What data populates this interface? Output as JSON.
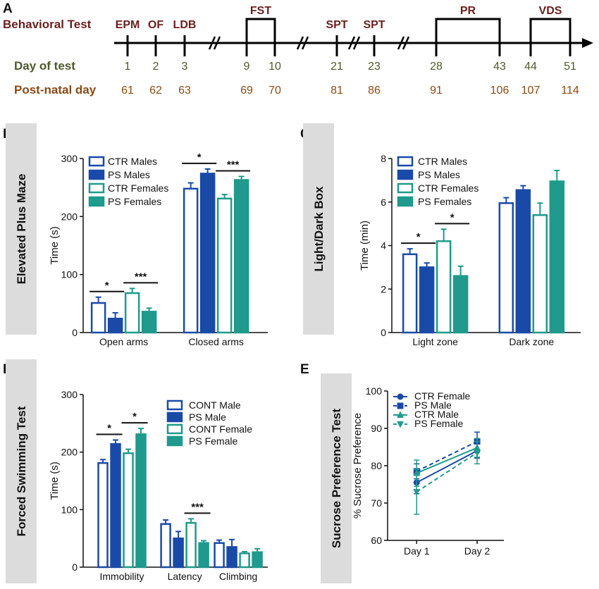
{
  "panels": {
    "a": "A",
    "b": "B",
    "c": "C",
    "d": "D",
    "e": "E"
  },
  "timeline": {
    "row_labels": {
      "behavioral": "Behavioral Test",
      "day": "Day of test",
      "pnd": "Post-natal day"
    },
    "days": [
      "1",
      "2",
      "3",
      "9",
      "10",
      "21",
      "23",
      "28",
      "43",
      "44",
      "51"
    ],
    "pnd": [
      "61",
      "62",
      "63",
      "69",
      "70",
      "81",
      "86",
      "91",
      "106",
      "107",
      "114"
    ],
    "tests": [
      "EPM",
      "OF",
      "LDB",
      "FST",
      "SPT",
      "SPT",
      "PR",
      "VDS"
    ],
    "colors": {
      "behavioral": "#6b1f1f",
      "day": "#4d5a2a",
      "pnd": "#8a4a14"
    }
  },
  "chart_data": [
    {
      "id": "B",
      "type": "bar",
      "side_label": "Elevated Plus Maze",
      "ylabel": "Time (s)",
      "ylim": [
        0,
        300
      ],
      "yticks": [
        0,
        100,
        200,
        300
      ],
      "categories": [
        "Open arms",
        "Closed arms"
      ],
      "series": [
        {
          "name": "CTR Males",
          "values": [
            51,
            248
          ],
          "errors": [
            10,
            10
          ],
          "fill": "#ffffff",
          "stroke": "#1a4aa8"
        },
        {
          "name": "PS Males",
          "values": [
            24,
            274
          ],
          "errors": [
            10,
            8
          ],
          "fill": "#1a4aa8",
          "stroke": "#1a4aa8"
        },
        {
          "name": "CTR Females",
          "values": [
            68,
            231
          ],
          "errors": [
            8,
            7
          ],
          "fill": "#ffffff",
          "stroke": "#1f9a8c"
        },
        {
          "name": "PS Females",
          "values": [
            36,
            263
          ],
          "errors": [
            6,
            6
          ],
          "fill": "#1f9a8c",
          "stroke": "#1f9a8c"
        }
      ],
      "significance": [
        {
          "group": 0,
          "from": 0,
          "to": 1,
          "label": "*"
        },
        {
          "group": 0,
          "from": 2,
          "to": 3,
          "label": "***"
        },
        {
          "group": 1,
          "from": 0,
          "to": 1,
          "label": "*"
        },
        {
          "group": 1,
          "from": 2,
          "to": 3,
          "label": "***"
        }
      ]
    },
    {
      "id": "C",
      "type": "bar",
      "side_label": "Light/Dark Box",
      "ylabel": "Time (min)",
      "ylim": [
        0,
        8
      ],
      "yticks": [
        0,
        2,
        4,
        6,
        8
      ],
      "categories": [
        "Light zone",
        "Dark zone"
      ],
      "series": [
        {
          "name": "CTR Males",
          "values": [
            3.6,
            5.95
          ],
          "errors": [
            0.25,
            0.25
          ],
          "fill": "#ffffff",
          "stroke": "#1a4aa8"
        },
        {
          "name": "PS Males",
          "values": [
            3.0,
            6.55
          ],
          "errors": [
            0.2,
            0.2
          ],
          "fill": "#1a4aa8",
          "stroke": "#1a4aa8"
        },
        {
          "name": "CTR Females",
          "values": [
            4.2,
            5.4
          ],
          "errors": [
            0.55,
            0.55
          ],
          "fill": "#ffffff",
          "stroke": "#1f9a8c"
        },
        {
          "name": "PS Females",
          "values": [
            2.6,
            6.95
          ],
          "errors": [
            0.45,
            0.5
          ],
          "fill": "#1f9a8c",
          "stroke": "#1f9a8c"
        }
      ],
      "significance": [
        {
          "group": 0,
          "from": 0,
          "to": 1,
          "label": "*"
        },
        {
          "group": 0,
          "from": 2,
          "to": 3,
          "label": "*"
        }
      ]
    },
    {
      "id": "D",
      "type": "bar",
      "side_label": "Forced Swimming Test",
      "ylabel": "Time (s)",
      "ylim": [
        0,
        300
      ],
      "yticks": [
        0,
        100,
        200,
        300
      ],
      "categories": [
        "Immobility",
        "Latency",
        "Climbing"
      ],
      "series": [
        {
          "name": "CONT Male",
          "values": [
            181,
            75,
            42
          ],
          "errors": [
            6,
            7,
            5
          ],
          "fill": "#ffffff",
          "stroke": "#1a4aa8"
        },
        {
          "name": "PS Male",
          "values": [
            214,
            50,
            35
          ],
          "errors": [
            7,
            12,
            13
          ],
          "fill": "#1a4aa8",
          "stroke": "#1a4aa8"
        },
        {
          "name": "CONT Female",
          "values": [
            198,
            77,
            24
          ],
          "errors": [
            7,
            7,
            3
          ],
          "fill": "#ffffff",
          "stroke": "#1f9a8c"
        },
        {
          "name": "PS Female",
          "values": [
            231,
            42,
            26
          ],
          "errors": [
            10,
            4,
            6
          ],
          "fill": "#1f9a8c",
          "stroke": "#1f9a8c"
        }
      ],
      "significance": [
        {
          "group": 0,
          "from": 0,
          "to": 1,
          "label": "*"
        },
        {
          "group": 0,
          "from": 2,
          "to": 3,
          "label": "*"
        },
        {
          "group": 1,
          "from": 2,
          "to": 3,
          "label": "***"
        }
      ]
    },
    {
      "id": "E",
      "type": "line",
      "side_label": "Sucrose Preference Test",
      "ylabel": "% Sucrose Preference",
      "ylim": [
        60,
        100
      ],
      "yticks": [
        60,
        70,
        80,
        90,
        100
      ],
      "categories": [
        "Day 1",
        "Day 2"
      ],
      "series": [
        {
          "name": "CTR Female",
          "values": [
            75.5,
            84.0
          ],
          "errors": [
            3.0,
            2.0
          ],
          "color": "#1a4aa8",
          "marker": "circle",
          "dash": false
        },
        {
          "name": "PS Male",
          "values": [
            78.5,
            86.5
          ],
          "errors": [
            2.0,
            2.5
          ],
          "color": "#1a4aa8",
          "marker": "square",
          "dash": true
        },
        {
          "name": "CTR Male",
          "values": [
            78.0,
            84.8
          ],
          "errors": [
            3.5,
            2.5
          ],
          "color": "#1f9a8c",
          "marker": "triangle-up",
          "dash": false
        },
        {
          "name": "PS Female",
          "values": [
            73.0,
            83.5
          ],
          "errors": [
            6.0,
            3.0
          ],
          "color": "#1f9a8c",
          "marker": "triangle-down",
          "dash": true
        }
      ]
    }
  ]
}
